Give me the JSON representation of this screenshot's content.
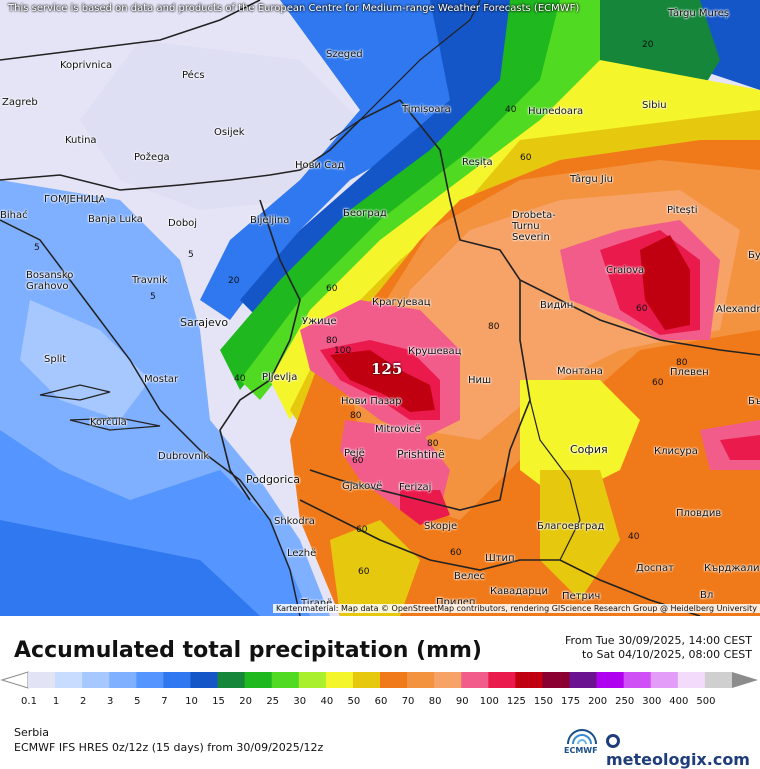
{
  "disclaimer": "This service is based on data and products of the European Centre for Medium-range Weather Forecasts (ECMWF)",
  "attribution": "Kartenmaterial: Map data © OpenStreetMap contributors, rendering GIScience Research Group @ Heidelberg University",
  "title": "Accumulated total precipitation (mm)",
  "period_from": "From Tue 30/09/2025, 14:00 CEST",
  "period_to": "to Sat 04/10/2025, 08:00 CEST",
  "region": "Serbia",
  "model": "ECMWF IFS HRES 0z/12z (15 days) from  30/09/2025/12z",
  "ecmwf_logo_text": "ECMWF",
  "brand": "meteologix.com",
  "max_value": "125",
  "cities": [
    {
      "name": "Koprivnica"
    },
    {
      "name": "Pécs"
    },
    {
      "name": "Szeged"
    },
    {
      "name": "Târgu Mureș"
    },
    {
      "name": "Zagreb"
    },
    {
      "name": "Timișoara"
    },
    {
      "name": "Hunedoara"
    },
    {
      "name": "Sibiu"
    },
    {
      "name": "Kutina"
    },
    {
      "name": "Osijek"
    },
    {
      "name": "Požega"
    },
    {
      "name": "Нови Сад"
    },
    {
      "name": "Reșița"
    },
    {
      "name": "Târgu Jiu"
    },
    {
      "name": "Pitești"
    },
    {
      "name": "ГОМЈЕНИЦА"
    },
    {
      "name": "Banja Luka"
    },
    {
      "name": "Doboj"
    },
    {
      "name": "Bijeljina"
    },
    {
      "name": "Београд"
    },
    {
      "name": "Drobeta-Turnu Severin"
    },
    {
      "name": "Bihać"
    },
    {
      "name": "Bosansko Grahovo"
    },
    {
      "name": "Travnik"
    },
    {
      "name": "Craiova"
    },
    {
      "name": "Крагујевац"
    },
    {
      "name": "Видин"
    },
    {
      "name": "Alexandria"
    },
    {
      "name": "Sarajevo"
    },
    {
      "name": "Ужице"
    },
    {
      "name": "Крушевац"
    },
    {
      "name": "Split"
    },
    {
      "name": "Mostar"
    },
    {
      "name": "Pljevlja"
    },
    {
      "name": "Ниш"
    },
    {
      "name": "Монтана"
    },
    {
      "name": "Плевен"
    },
    {
      "name": "Нови Пазар"
    },
    {
      "name": "Korčula"
    },
    {
      "name": "Mitrovicë"
    },
    {
      "name": "Dubrovnik"
    },
    {
      "name": "Pejë"
    },
    {
      "name": "Prishtinë"
    },
    {
      "name": "София"
    },
    {
      "name": "Клисура"
    },
    {
      "name": "Podgorica"
    },
    {
      "name": "Gjakovë"
    },
    {
      "name": "Ferizaj"
    },
    {
      "name": "Shkodra"
    },
    {
      "name": "Skopje"
    },
    {
      "name": "Благоевград"
    },
    {
      "name": "Пловдив"
    },
    {
      "name": "Lezhë"
    },
    {
      "name": "Штип"
    },
    {
      "name": "Велес"
    },
    {
      "name": "Доспат"
    },
    {
      "name": "Кърджали"
    },
    {
      "name": "Tiranë"
    },
    {
      "name": "Прилеп"
    },
    {
      "name": "Кавадарци"
    },
    {
      "name": "Петрич"
    },
    {
      "name": "Вл"
    },
    {
      "name": "Бу"
    },
    {
      "name": "Бъ"
    }
  ],
  "contour_labels": [
    "20",
    "40",
    "60",
    "5",
    "5",
    "5",
    "20",
    "40",
    "60",
    "80",
    "80",
    "80",
    "100",
    "60",
    "60",
    "80",
    "60",
    "40",
    "60",
    "60",
    "80",
    "60"
  ],
  "legend": {
    "left_arrow_color": "#ffffff",
    "right_arrow_color": "#8c8c8c",
    "classes": [
      {
        "label": "0.1",
        "color": "#e3e3f6"
      },
      {
        "label": "1",
        "color": "#c7dcff"
      },
      {
        "label": "2",
        "color": "#a6c8ff"
      },
      {
        "label": "3",
        "color": "#7fb0ff"
      },
      {
        "label": "5",
        "color": "#5495ff"
      },
      {
        "label": "7",
        "color": "#2f78ef"
      },
      {
        "label": "10",
        "color": "#1456c8"
      },
      {
        "label": "15",
        "color": "#15863a"
      },
      {
        "label": "20",
        "color": "#1fb81f"
      },
      {
        "label": "25",
        "color": "#50da22"
      },
      {
        "label": "30",
        "color": "#a9ef2e"
      },
      {
        "label": "40",
        "color": "#f5f52c"
      },
      {
        "label": "50",
        "color": "#e6c80f"
      },
      {
        "label": "60",
        "color": "#f07a1a"
      },
      {
        "label": "70",
        "color": "#f39340"
      },
      {
        "label": "80",
        "color": "#f7a266"
      },
      {
        "label": "90",
        "color": "#f25c8b"
      },
      {
        "label": "100",
        "color": "#ea1b4c"
      },
      {
        "label": "125",
        "color": "#c00010"
      },
      {
        "label": "150",
        "color": "#8a0030"
      },
      {
        "label": "175",
        "color": "#6a1290"
      },
      {
        "label": "200",
        "color": "#b000f0"
      },
      {
        "label": "250",
        "color": "#cf50f5"
      },
      {
        "label": "300",
        "color": "#e39cf7"
      },
      {
        "label": "400",
        "color": "#f3dbfb"
      },
      {
        "label": "500",
        "color": "#cfcfcf"
      }
    ]
  }
}
